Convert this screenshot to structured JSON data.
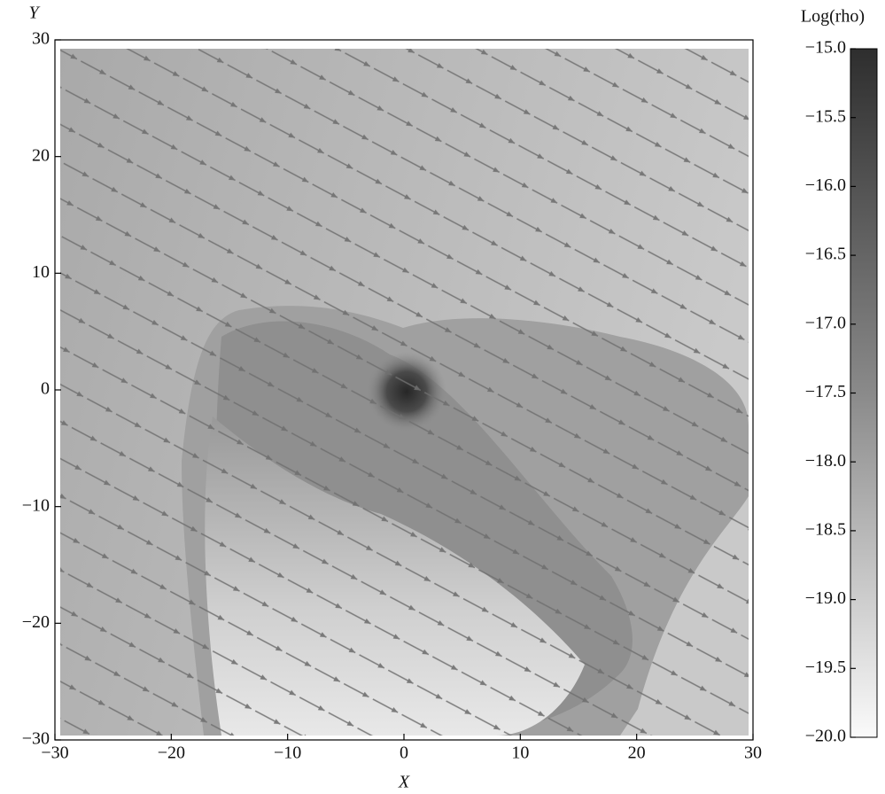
{
  "chart_data": {
    "type": "heatmap",
    "xlabel": "X",
    "ylabel": "Y",
    "xlim": [
      -30,
      30
    ],
    "ylim": [
      -30,
      30
    ],
    "xticks": [
      {
        "value": -30,
        "label": "−30"
      },
      {
        "value": -20,
        "label": "−20"
      },
      {
        "value": -10,
        "label": "−10"
      },
      0,
      10,
      20,
      30
    ],
    "yticks": [
      {
        "value": -30,
        "label": "−30"
      },
      {
        "value": -20,
        "label": "−20"
      },
      {
        "value": -10,
        "label": "−10"
      },
      0,
      10,
      20,
      30
    ],
    "colorbar": {
      "label": "Log(rho)",
      "lim": [
        -20.0,
        -15.0
      ],
      "ticks": [
        {
          "value": -15.0,
          "label": "−15.0"
        },
        {
          "value": -15.5,
          "label": "−15.5"
        },
        {
          "value": -16.0,
          "label": "−16.0"
        },
        {
          "value": -16.5,
          "label": "−16.5"
        },
        {
          "value": -17.0,
          "label": "−17.0"
        },
        {
          "value": -17.5,
          "label": "−17.5"
        },
        {
          "value": -18.0,
          "label": "−18.0"
        },
        {
          "value": -18.5,
          "label": "−18.5"
        },
        {
          "value": -19.0,
          "label": "−19.0"
        },
        {
          "value": -19.5,
          "label": "−19.5"
        },
        {
          "value": -20.0,
          "label": "−20.0"
        }
      ]
    }
  }
}
